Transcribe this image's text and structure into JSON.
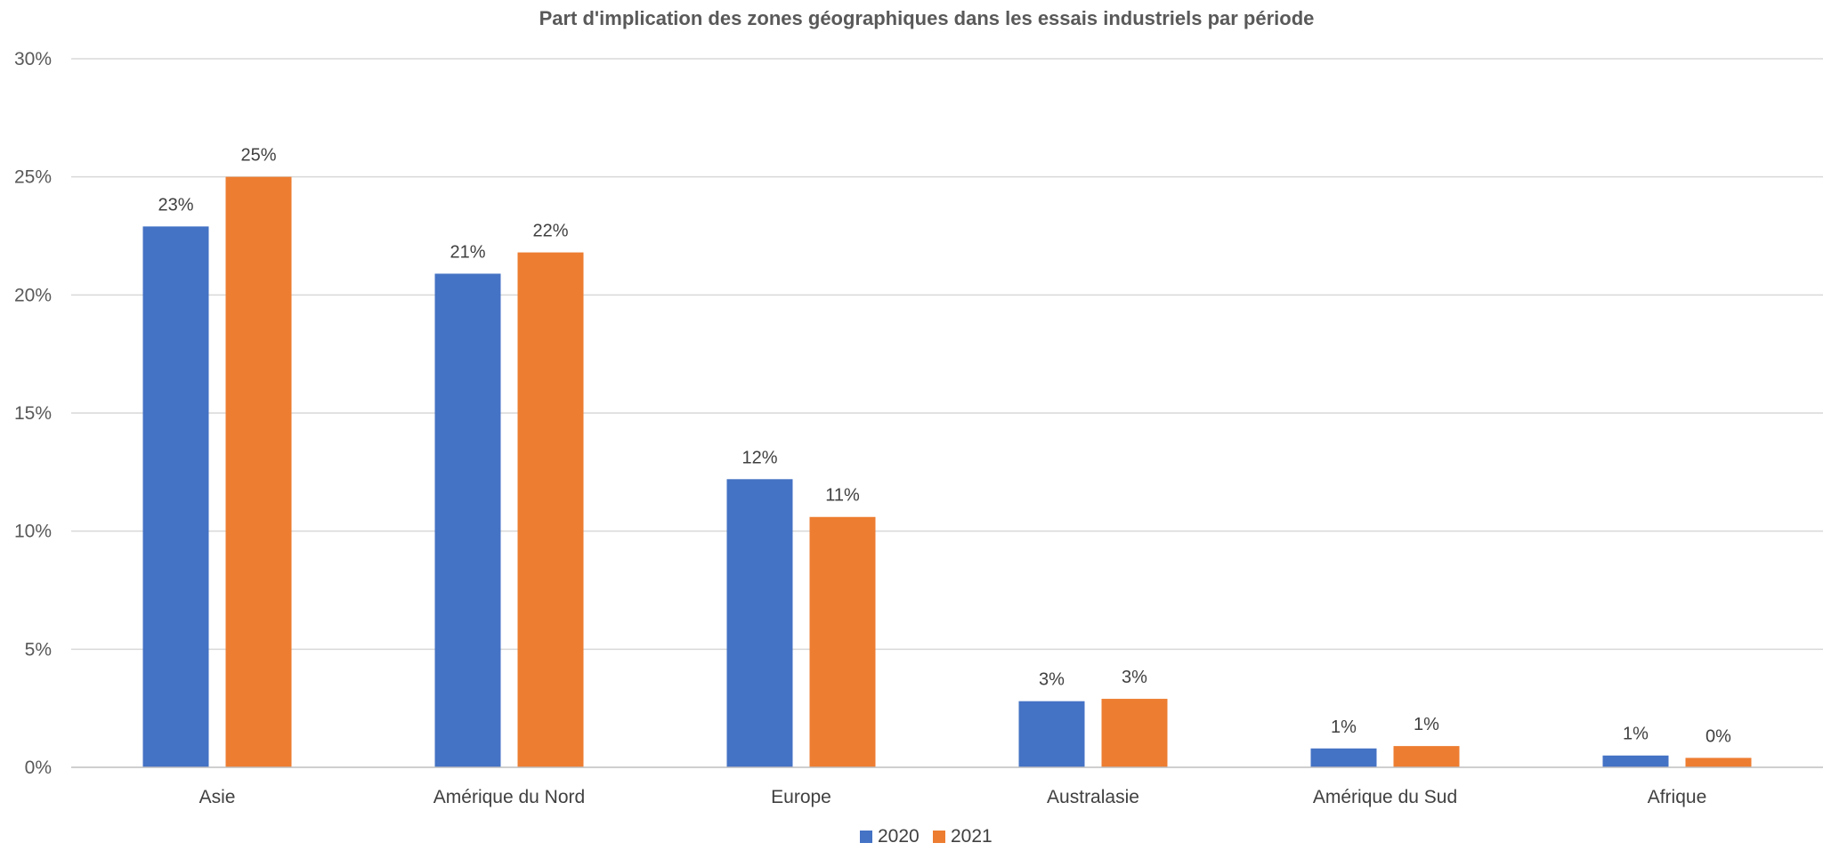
{
  "chart_data": {
    "type": "bar",
    "title": "Part d'implication des zones géographiques dans les essais industriels par période",
    "categories": [
      "Asie",
      "Amérique du Nord",
      "Europe",
      "Australasie",
      "Amérique du Sud",
      "Afrique"
    ],
    "series": [
      {
        "name": "2020",
        "color": "#4472C4",
        "values": [
          22.9,
          20.9,
          12.2,
          2.8,
          0.8,
          0.5
        ],
        "labels": [
          "23%",
          "21%",
          "12%",
          "3%",
          "1%",
          "1%"
        ]
      },
      {
        "name": "2021",
        "color": "#ED7D31",
        "values": [
          25.0,
          21.8,
          10.6,
          2.9,
          0.9,
          0.4
        ],
        "labels": [
          "25%",
          "22%",
          "11%",
          "3%",
          "1%",
          "0%"
        ]
      }
    ],
    "ylim": [
      0,
      30
    ],
    "yticks": [
      0,
      5,
      10,
      15,
      20,
      25,
      30
    ],
    "ytick_labels": [
      "0%",
      "5%",
      "10%",
      "15%",
      "20%",
      "25%",
      "30%"
    ],
    "xlabel": "",
    "ylabel": "",
    "grid": true,
    "legend": "bottom"
  }
}
